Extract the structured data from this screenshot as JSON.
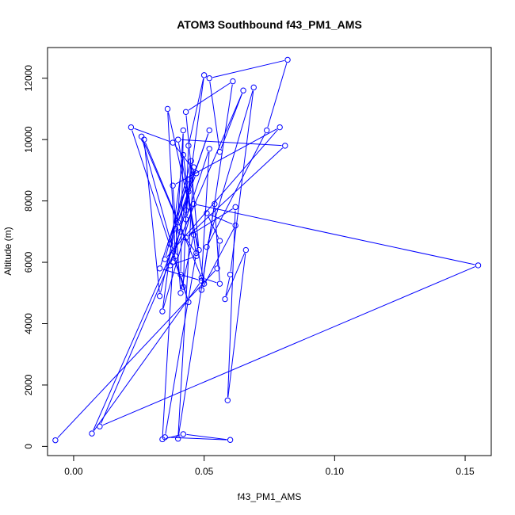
{
  "chart_data": {
    "type": "line",
    "title": "ATOM3 Southbound f43_PM1_AMS",
    "xlabel": "f43_PM1_AMS",
    "ylabel": "Altitude (m)",
    "xlim": [
      -0.01,
      0.16
    ],
    "ylim": [
      -300,
      13000
    ],
    "xticks": [
      0.0,
      0.05,
      0.1,
      0.15
    ],
    "xtick_labels": [
      "0.00",
      "0.05",
      "0.10",
      "0.15"
    ],
    "yticks": [
      0,
      2000,
      4000,
      6000,
      8000,
      10000,
      12000
    ],
    "ytick_labels": [
      "0",
      "2000",
      "4000",
      "6000",
      "8000",
      "10000",
      "12000"
    ],
    "marker": "open-circle",
    "grid": false,
    "legend": "none",
    "color": "#0000ff",
    "series": [
      {
        "x": [
          -0.007,
          0.055,
          0.056,
          0.051,
          0.062,
          0.049,
          0.061,
          0.043,
          0.048,
          0.036,
          0.039,
          0.042,
          0.041,
          0.044,
          0.022,
          0.038,
          0.047,
          0.04,
          0.026,
          0.042,
          0.044,
          0.05,
          0.043,
          0.037,
          0.047,
          0.042,
          0.034,
          0.046,
          0.155,
          0.01,
          0.065,
          0.056,
          0.052,
          0.082,
          0.074,
          0.051,
          0.069,
          0.06,
          0.058,
          0.066,
          0.059,
          0.062,
          0.043,
          0.081,
          0.04,
          0.05,
          0.027,
          0.033,
          0.039,
          0.052,
          0.044,
          0.046,
          0.041,
          0.038,
          0.079,
          0.035,
          0.045,
          0.043,
          0.052,
          0.049,
          0.056,
          0.054,
          0.04,
          0.046,
          0.038,
          0.034,
          0.042,
          0.06,
          0.035,
          0.047,
          0.041,
          0.007,
          0.049,
          0.033,
          0.044,
          0.037
        ],
        "y": [
          200,
          5800,
          6700,
          7600,
          7200,
          5100,
          11900,
          10900,
          6400,
          11000,
          6200,
          10300,
          5600,
          4700,
          10400,
          9900,
          8900,
          7300,
          10100,
          5200,
          9800,
          12100,
          7700,
          5900,
          6200,
          9500,
          4400,
          7900,
          5900,
          650,
          11600,
          9600,
          12000,
          12600,
          10300,
          6500,
          11700,
          5600,
          4800,
          6400,
          1500,
          7800,
          6800,
          9800,
          10000,
          5300,
          10000,
          4900,
          7100,
          10300,
          8300,
          6900,
          5000,
          8500,
          10400,
          6100,
          9300,
          7400,
          9700,
          5500,
          5300,
          7900,
          250,
          9100,
          6000,
          230,
          400,
          210,
          300,
          6300,
          7000,
          420,
          5400,
          5800,
          8700,
          6600
        ]
      }
    ]
  }
}
